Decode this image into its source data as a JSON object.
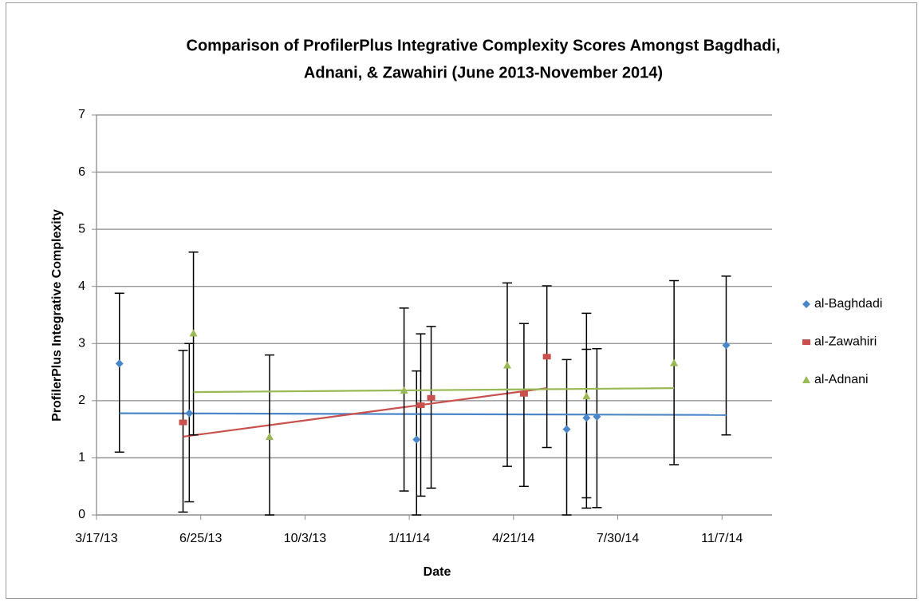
{
  "chart_data": {
    "type": "scatter",
    "title": [
      "Comparison of  ProfilerPlus Integrative Complexity Scores Amongst Bagdhadi,",
      "Adnani, & Zawahiri (June 2013-November 2014)"
    ],
    "x_label": "Date",
    "y_label": "ProfilerPlus Integrative Complexity",
    "xlim": [
      "2013-03-17",
      "2014-12-25"
    ],
    "xticks": [
      {
        "value": "2013-03-17",
        "label": "3/17/13"
      },
      {
        "value": "2013-06-25",
        "label": "6/25/13"
      },
      {
        "value": "2013-10-03",
        "label": "10/3/13"
      },
      {
        "value": "2014-01-11",
        "label": "1/11/14"
      },
      {
        "value": "2014-04-21",
        "label": "4/21/14"
      },
      {
        "value": "2014-07-30",
        "label": "7/30/14"
      },
      {
        "value": "2014-11-07",
        "label": "11/7/14"
      }
    ],
    "ylim": [
      0,
      7
    ],
    "yticks": [
      0,
      1,
      2,
      3,
      4,
      5,
      6,
      7
    ],
    "grid": true,
    "legend": "right",
    "series": [
      {
        "name": "al-Baghdadi",
        "color": "#4a86c8",
        "marker": "diamond",
        "x": [
          "2013-04-08",
          "2013-06-14",
          "2014-01-18",
          "2014-06-11",
          "2014-06-30",
          "2014-07-10",
          "2014-11-11"
        ],
        "values": [
          2.65,
          1.78,
          1.32,
          1.5,
          1.7,
          1.72,
          2.97
        ],
        "error_minus": [
          1.55,
          1.55,
          1.32,
          1.5,
          1.4,
          1.59,
          1.57
        ],
        "error_plus": [
          1.23,
          1.22,
          1.2,
          1.22,
          1.2,
          1.19,
          1.21
        ],
        "trend": [
          1.78,
          1.75
        ]
      },
      {
        "name": "al-Zawahiri",
        "color": "#c9504c",
        "marker": "square",
        "x": [
          "2013-06-08",
          "2014-01-22",
          "2014-02-01",
          "2014-05-01",
          "2014-05-23"
        ],
        "values": [
          1.62,
          1.92,
          2.05,
          2.12,
          2.77
        ],
        "error_minus": [
          1.57,
          1.59,
          1.58,
          1.62,
          1.59
        ],
        "error_plus": [
          1.26,
          1.25,
          1.25,
          1.23,
          1.24
        ],
        "trend": [
          1.37,
          2.22
        ]
      },
      {
        "name": "al-Adnani",
        "color": "#98b954",
        "marker": "triangle",
        "x": [
          "2013-06-18",
          "2013-08-30",
          "2014-01-06",
          "2014-04-15",
          "2014-06-30",
          "2014-09-22"
        ],
        "values": [
          3.18,
          1.37,
          2.18,
          2.62,
          2.08,
          2.66
        ],
        "error_minus": [
          1.78,
          1.37,
          1.76,
          1.77,
          1.96,
          1.78
        ],
        "error_plus": [
          1.42,
          1.43,
          1.44,
          1.44,
          1.45,
          1.44
        ],
        "trend": [
          2.15,
          2.22
        ]
      }
    ]
  }
}
